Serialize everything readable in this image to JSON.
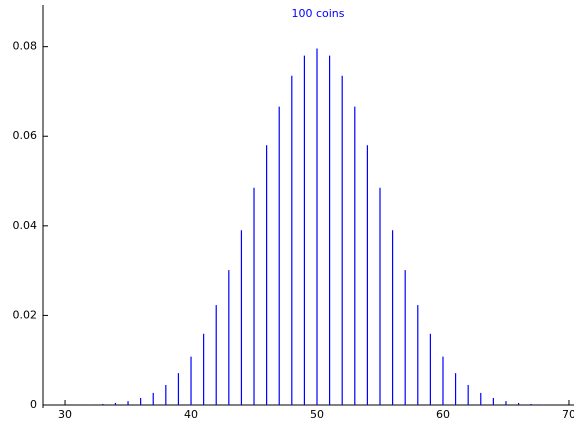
{
  "chart_data": {
    "type": "stem",
    "title": "100 coins",
    "x": [
      30,
      31,
      32,
      33,
      34,
      35,
      36,
      37,
      38,
      39,
      40,
      41,
      42,
      43,
      44,
      45,
      46,
      47,
      48,
      49,
      50,
      51,
      52,
      53,
      54,
      55,
      56,
      57,
      58,
      59,
      60,
      61,
      62,
      63,
      64,
      65,
      66,
      67,
      68,
      69,
      70
    ],
    "series": [
      {
        "color": "#0000ff",
        "values": [
          2.32e-05,
          5.23e-05,
          0.000113,
          0.000232,
          0.000458,
          0.000864,
          0.00156,
          0.0027,
          0.00447,
          0.00711,
          0.0108,
          0.0159,
          0.0223,
          0.0301,
          0.039,
          0.0485,
          0.058,
          0.0666,
          0.0735,
          0.078,
          0.0796,
          0.078,
          0.0735,
          0.0666,
          0.058,
          0.0485,
          0.039,
          0.0301,
          0.0223,
          0.0159,
          0.0108,
          0.00711,
          0.00447,
          0.0027,
          0.00156,
          0.000864,
          0.000458,
          0.000232,
          0.000113,
          5.23e-05,
          2.32e-05
        ]
      }
    ],
    "xlim": [
      28.25,
      70.4
    ],
    "xticks": [
      30,
      40,
      50,
      60,
      70
    ],
    "ylim": [
      0,
      0.0893
    ],
    "yticks": [
      0,
      0.02,
      0.04,
      0.06,
      0.08
    ]
  }
}
